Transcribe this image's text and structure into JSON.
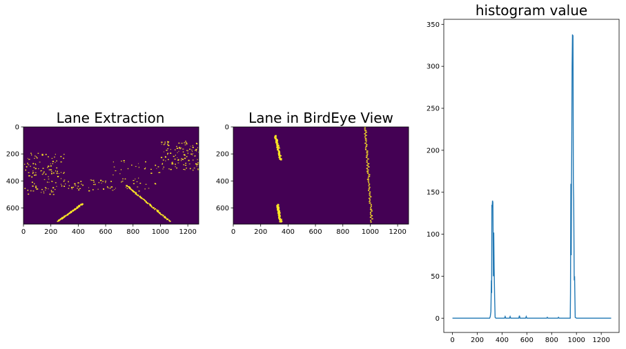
{
  "chart_data": [
    {
      "type": "heatmap",
      "title": "Lane Extraction",
      "colormap": "viridis",
      "colors": {
        "background": "#440154",
        "lane_pixel": "#fde725"
      },
      "xlim": [
        0,
        1280
      ],
      "ylim": [
        720,
        0
      ],
      "x_ticks": [
        "0",
        "200",
        "400",
        "600",
        "800",
        "1000",
        "1200"
      ],
      "y_ticks": [
        "0",
        "200",
        "400",
        "600"
      ],
      "lane_segments": [
        {
          "name": "left lane line",
          "x": [
            250,
            430
          ],
          "y": [
            695,
            565
          ]
        },
        {
          "name": "right lane line",
          "x": [
            750,
            1070
          ],
          "y": [
            430,
            695
          ]
        }
      ],
      "noise_regions": [
        {
          "x": [
            0,
            300
          ],
          "y": [
            190,
            500
          ],
          "density": "dense"
        },
        {
          "x": [
            300,
            650
          ],
          "y": [
            390,
            470
          ],
          "density": "sparse"
        },
        {
          "x": [
            650,
            1000
          ],
          "y": [
            240,
            480
          ],
          "density": "sparse"
        },
        {
          "x": [
            1000,
            1280
          ],
          "y": [
            100,
            320
          ],
          "density": "dense"
        }
      ]
    },
    {
      "type": "heatmap",
      "title": "Lane in BirdEye View",
      "colormap": "viridis",
      "colors": {
        "background": "#440154",
        "lane_pixel": "#fde725"
      },
      "xlim": [
        0,
        1280
      ],
      "ylim": [
        720,
        0
      ],
      "x_ticks": [
        "0",
        "200",
        "400",
        "600",
        "800",
        "1000",
        "1200"
      ],
      "y_ticks": [
        "0",
        "200",
        "400",
        "600"
      ],
      "lane_segments": [
        {
          "name": "left lane upper",
          "x": [
            305,
            345
          ],
          "y": [
            60,
            240
          ]
        },
        {
          "name": "left lane lower",
          "x": [
            320,
            345
          ],
          "y": [
            570,
            700
          ]
        },
        {
          "name": "right lane",
          "x": [
            960,
            1010
          ],
          "y": [
            0,
            700
          ]
        }
      ]
    },
    {
      "type": "line",
      "title": "histogram value",
      "color": "#1f77b4",
      "xlim": [
        -70,
        1344
      ],
      "ylim": [
        -17,
        356
      ],
      "x_ticks": [
        "0",
        "200",
        "400",
        "600",
        "800",
        "1000",
        "1200"
      ],
      "y_ticks": [
        "0",
        "50",
        "100",
        "150",
        "200",
        "250",
        "300",
        "350"
      ],
      "x": [
        0,
        300,
        305,
        310,
        314,
        316,
        318,
        320,
        323,
        326,
        330,
        333,
        336,
        340,
        344,
        350,
        420,
        425,
        430,
        460,
        465,
        470,
        535,
        540,
        545,
        590,
        595,
        600,
        760,
        765,
        770,
        850,
        855,
        860,
        950,
        952,
        955,
        958,
        960,
        962,
        965,
        968,
        970,
        972,
        975,
        978,
        982,
        985,
        990,
        1000,
        1280
      ],
      "y": [
        0,
        0,
        2,
        8,
        45,
        30,
        135,
        132,
        140,
        138,
        50,
        102,
        60,
        25,
        1,
        0,
        0,
        2,
        0,
        0,
        2,
        0,
        0,
        3,
        0,
        0,
        2,
        0,
        0,
        1,
        0,
        0,
        1,
        0,
        0,
        30,
        160,
        75,
        160,
        200,
        300,
        338,
        330,
        337,
        162,
        140,
        45,
        50,
        1,
        0,
        0
      ]
    }
  ]
}
